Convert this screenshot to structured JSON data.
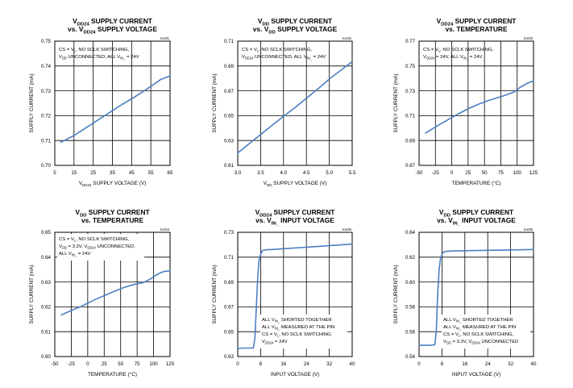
{
  "colors": {
    "line": "#4a7fc1",
    "grid": "#000000",
    "frame": "#000000",
    "text": "#000000"
  },
  "chart_data": [
    {
      "type": "line",
      "id": "toc01",
      "title_lines": [
        [
          {
            "t": "V"
          },
          {
            "t": "DD24",
            "sub": true
          },
          {
            "t": " SUPPLY CURRENT"
          }
        ],
        [
          {
            "t": "vs. V"
          },
          {
            "t": "DD24",
            "sub": true
          },
          {
            "t": " SUPPLY VOLTAGE"
          }
        ]
      ],
      "xlabel": [
        {
          "t": "V"
        },
        {
          "t": "DD24",
          "sub": true
        },
        {
          "t": " SUPPLY VOLTAGE (V)"
        }
      ],
      "ylabel": "SUPPLY CURRENT (mA)",
      "xticks": [
        "5",
        "15",
        "25",
        "35",
        "45",
        "55",
        "65"
      ],
      "yticks": [
        "0.70",
        "0.71",
        "0.72",
        "0.73",
        "0.74",
        "0.75"
      ],
      "xlim": [
        5,
        65
      ],
      "ylim": [
        0.7,
        0.75
      ],
      "annotation": [
        [
          {
            "t": "CS",
            "over": true
          },
          {
            "t": " = V"
          },
          {
            "t": "L",
            "sub": true
          },
          {
            "t": ", NO SCLK SWITCHING,"
          }
        ],
        [
          {
            "t": "V"
          },
          {
            "t": "DD",
            "sub": true
          },
          {
            "t": " UNCONNECTED, ALL V"
          },
          {
            "t": "IN_",
            "sub": true
          },
          {
            "t": " = 24V"
          }
        ]
      ],
      "series": [
        {
          "x": [
            8,
            10,
            15,
            20,
            25,
            30,
            35,
            40,
            45,
            50,
            55,
            60,
            65
          ],
          "y": [
            0.7093,
            0.71,
            0.712,
            0.7145,
            0.717,
            0.7195,
            0.722,
            0.7245,
            0.7268,
            0.7292,
            0.7318,
            0.7345,
            0.736
          ]
        }
      ]
    },
    {
      "type": "line",
      "id": "toc02",
      "title_lines": [
        [
          {
            "t": "V"
          },
          {
            "t": "DD",
            "sub": true
          },
          {
            "t": " SUPPLY CURRENT"
          }
        ],
        [
          {
            "t": "vs. V"
          },
          {
            "t": "DD",
            "sub": true
          },
          {
            "t": " SUPPLY VOLTAGE"
          }
        ]
      ],
      "xlabel": [
        {
          "t": "V"
        },
        {
          "t": "DD",
          "sub": true
        },
        {
          "t": " SUPPLY VOLTAGE (V)"
        }
      ],
      "ylabel": "SUPPLY CURRENT (mA)",
      "xticks": [
        "3.0",
        "3.5",
        "4.0",
        "4.5",
        "5.0",
        "5.5"
      ],
      "yticks": [
        "0.61",
        "0.63",
        "0.65",
        "0.67",
        "0.69",
        "0.71"
      ],
      "xlim": [
        3.0,
        5.5
      ],
      "ylim": [
        0.61,
        0.71
      ],
      "annotation": [
        [
          {
            "t": "CS",
            "over": true
          },
          {
            "t": " = V"
          },
          {
            "t": "L",
            "sub": true
          },
          {
            "t": ", NO SCLK SWITCHING,"
          }
        ],
        [
          {
            "t": "V"
          },
          {
            "t": "DD24",
            "sub": true
          },
          {
            "t": " UNCONNECTED, ALL V"
          },
          {
            "t": "IN_",
            "sub": true
          },
          {
            "t": " = 24V"
          }
        ]
      ],
      "series": [
        {
          "x": [
            3.0,
            3.25,
            3.5,
            3.75,
            4.0,
            4.25,
            4.5,
            4.75,
            5.0,
            5.25,
            5.5
          ],
          "y": [
            0.62,
            0.6275,
            0.6348,
            0.6422,
            0.6495,
            0.6565,
            0.664,
            0.6715,
            0.6795,
            0.6865,
            0.6935
          ]
        }
      ]
    },
    {
      "type": "line",
      "id": "toc03",
      "title_lines": [
        [
          {
            "t": "V"
          },
          {
            "t": "DD24",
            "sub": true
          },
          {
            "t": " SUPPLY CURRENT"
          }
        ],
        [
          {
            "t": "vs. TEMPERATURE"
          }
        ]
      ],
      "xlabel": [
        {
          "t": "TEMPERATURE (°C)"
        }
      ],
      "ylabel": "SUPPLY CURRENT (mA)",
      "xticks": [
        "-50",
        "-25",
        "0",
        "25",
        "50",
        "75",
        "100",
        "125"
      ],
      "yticks": [
        "0.67",
        "0.69",
        "0.71",
        "0.73",
        "0.75",
        "0.77"
      ],
      "xlim": [
        -50,
        125
      ],
      "ylim": [
        0.67,
        0.77
      ],
      "annotation": [
        [
          {
            "t": "CS",
            "over": true
          },
          {
            "t": " = V"
          },
          {
            "t": "L",
            "sub": true
          },
          {
            "t": ", NO SCLK SWITCHING,"
          }
        ],
        [
          {
            "t": "V"
          },
          {
            "t": "DD24",
            "sub": true
          },
          {
            "t": " = 24V, ALL V"
          },
          {
            "t": "IN_",
            "sub": true
          },
          {
            "t": " = 24V"
          }
        ]
      ],
      "series": [
        {
          "x": [
            -40,
            -25,
            -10,
            0,
            10,
            25,
            40,
            55,
            70,
            85,
            95,
            105,
            115,
            125
          ],
          "y": [
            0.696,
            0.701,
            0.7055,
            0.7085,
            0.7115,
            0.7155,
            0.719,
            0.722,
            0.7245,
            0.727,
            0.729,
            0.733,
            0.736,
            0.738
          ]
        }
      ]
    },
    {
      "type": "line",
      "id": "toc04",
      "title_lines": [
        [
          {
            "t": "V"
          },
          {
            "t": "DD",
            "sub": true
          },
          {
            "t": " SUPPLY CURRENT"
          }
        ],
        [
          {
            "t": "vs. TEMPERATURE"
          }
        ]
      ],
      "xlabel": [
        {
          "t": "TEMPERATURE (°C)"
        }
      ],
      "ylabel": "SUPPLY CURRENT (mA)",
      "xticks": [
        "-50",
        "-25",
        "0",
        "25",
        "50",
        "75",
        "100",
        "125"
      ],
      "yticks": [
        "0.60",
        "0.61",
        "0.62",
        "0.63",
        "0.64",
        "0.65"
      ],
      "xlim": [
        -50,
        125
      ],
      "ylim": [
        0.6,
        0.65
      ],
      "annotation": [
        [
          {
            "t": "CS",
            "over": true
          },
          {
            "t": " = V"
          },
          {
            "t": "L",
            "sub": true
          },
          {
            "t": ", NO SCLK SWITCHING,"
          }
        ],
        [
          {
            "t": "V"
          },
          {
            "t": "DD",
            "sub": true
          },
          {
            "t": " = 3.3V, V"
          },
          {
            "t": "DD24",
            "sub": true
          },
          {
            "t": " UNCONNECTED,"
          }
        ],
        [
          {
            "t": "ALL V"
          },
          {
            "t": "IN_",
            "sub": true
          },
          {
            "t": " = 24V"
          }
        ]
      ],
      "series": [
        {
          "x": [
            -40,
            -25,
            -10,
            0,
            10,
            25,
            40,
            55,
            70,
            85,
            95,
            105,
            110,
            115,
            125
          ],
          "y": [
            0.6168,
            0.6185,
            0.6202,
            0.6215,
            0.6228,
            0.6245,
            0.6262,
            0.6278,
            0.629,
            0.6298,
            0.6312,
            0.633,
            0.6337,
            0.6342,
            0.6345
          ]
        }
      ]
    },
    {
      "type": "line",
      "id": "toc05",
      "title_lines": [
        [
          {
            "t": "V"
          },
          {
            "t": "DD24",
            "sub": true
          },
          {
            "t": " SUPPLY CURRENT"
          }
        ],
        [
          {
            "t": "vs. V"
          },
          {
            "t": "IN_",
            "sub": true
          },
          {
            "t": " INPUT VOLTAGE"
          }
        ]
      ],
      "xlabel": [
        {
          "t": "INPUT VOLTAGE (V)"
        }
      ],
      "ylabel": "SUPPLY CURRENT (mA)",
      "xticks": [
        "0",
        "8",
        "16",
        "24",
        "32",
        "40"
      ],
      "yticks": [
        "0.63",
        "0.65",
        "0.67",
        "0.69",
        "0.71",
        "0.73"
      ],
      "xlim": [
        0,
        40
      ],
      "ylim": [
        0.63,
        0.73
      ],
      "annotation": [
        [
          {
            "t": "ALL V"
          },
          {
            "t": "IN_",
            "sub": true
          },
          {
            "t": " SHORTED TOGETHER"
          }
        ],
        [
          {
            "t": "ALL V"
          },
          {
            "t": "IN_",
            "sub": true
          },
          {
            "t": " MEASURED AT THE PIN"
          }
        ],
        [
          {
            "t": "CS",
            "over": true
          },
          {
            "t": " = V"
          },
          {
            "t": "L",
            "sub": true
          },
          {
            "t": ", NO SCLK SWITCHING,"
          }
        ],
        [
          {
            "t": "V"
          },
          {
            "t": "DD24",
            "sub": true
          },
          {
            "t": " = 24V"
          }
        ]
      ],
      "series": [
        {
          "x": [
            0,
            2,
            4,
            5.5,
            6,
            6.5,
            7,
            7.5,
            8,
            8.5,
            9,
            10,
            12,
            16,
            24,
            32,
            40
          ],
          "y": [
            0.6365,
            0.6368,
            0.6368,
            0.637,
            0.645,
            0.67,
            0.695,
            0.708,
            0.712,
            0.715,
            0.7155,
            0.716,
            0.7162,
            0.7168,
            0.718,
            0.7192,
            0.7205
          ]
        }
      ]
    },
    {
      "type": "line",
      "id": "toc06",
      "title_lines": [
        [
          {
            "t": "V"
          },
          {
            "t": "DD",
            "sub": true
          },
          {
            "t": " SUPPLY CURRENT"
          }
        ],
        [
          {
            "t": "vs. V"
          },
          {
            "t": "IN_",
            "sub": true
          },
          {
            "t": " INPUT VOLTAGE"
          }
        ]
      ],
      "xlabel": [
        {
          "t": "INPUT VOLTAGE (V)"
        }
      ],
      "ylabel": "SUPPLY CURRENT (mA)",
      "xticks": [
        "0",
        "8",
        "16",
        "24",
        "32",
        "40"
      ],
      "yticks": [
        "0.54",
        "0.56",
        "0.58",
        "0.60",
        "0.62",
        "0.64"
      ],
      "xlim": [
        0,
        40
      ],
      "ylim": [
        0.54,
        0.64
      ],
      "annotation": [
        [
          {
            "t": "ALL V"
          },
          {
            "t": "IN_",
            "sub": true
          },
          {
            "t": " SHORTED TOGETHER"
          }
        ],
        [
          {
            "t": "ALL V"
          },
          {
            "t": "IN_",
            "sub": true
          },
          {
            "t": " MEASURED AT THE PIN"
          }
        ],
        [
          {
            "t": "CS",
            "over": true
          },
          {
            "t": " = V"
          },
          {
            "t": "L",
            "sub": true
          },
          {
            "t": ", NO SCLK SWITCHING,"
          }
        ],
        [
          {
            "t": "V"
          },
          {
            "t": "DD",
            "sub": true
          },
          {
            "t": " = 3.3V, V"
          },
          {
            "t": "DD24",
            "sub": true
          },
          {
            "t": " UNCONNECTED"
          }
        ]
      ],
      "series": [
        {
          "x": [
            0,
            2,
            4,
            5.5,
            6,
            6.5,
            7,
            7.5,
            8,
            8.5,
            9,
            10,
            12,
            16,
            24,
            32,
            40
          ],
          "y": [
            0.549,
            0.549,
            0.549,
            0.5495,
            0.56,
            0.59,
            0.61,
            0.619,
            0.622,
            0.624,
            0.6245,
            0.6248,
            0.625,
            0.6252,
            0.6255,
            0.6258,
            0.6262
          ]
        }
      ]
    }
  ]
}
